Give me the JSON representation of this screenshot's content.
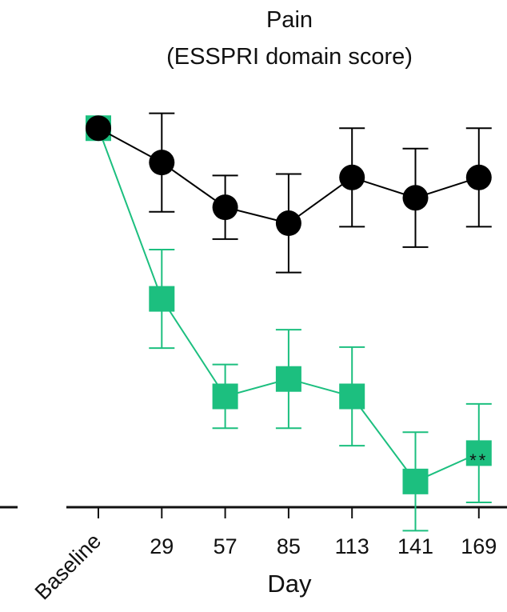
{
  "chart_data": {
    "type": "line",
    "title": "Pain",
    "subtitle": "(ESSPRI domain score)",
    "xlabel": "Day",
    "ylabel": "",
    "categories": [
      "Baseline",
      "29",
      "57",
      "85",
      "113",
      "141",
      "169"
    ],
    "ylim": [
      0,
      1
    ],
    "grid": false,
    "legend": "none",
    "series": [
      {
        "color": "#000000",
        "marker": "circle",
        "values": [
          0.826,
          0.757,
          0.667,
          0.635,
          0.727,
          0.686,
          0.727
        ],
        "error": [
          0.0,
          0.099,
          0.064,
          0.099,
          0.099,
          0.099,
          0.099
        ]
      },
      {
        "color": "#1cbf7f",
        "marker": "square",
        "values": [
          0.826,
          0.483,
          0.287,
          0.322,
          0.287,
          0.116,
          0.173
        ],
        "error": [
          0.0,
          0.099,
          0.064,
          0.099,
          0.099,
          0.099,
          0.099
        ]
      }
    ],
    "annotations": [
      {
        "text": "**",
        "category": "169"
      }
    ]
  }
}
